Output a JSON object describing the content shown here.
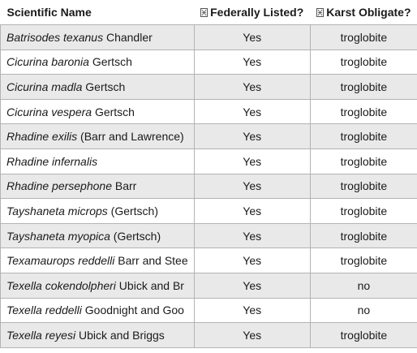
{
  "table": {
    "headers": [
      {
        "label": "Scientific Name",
        "icon": ""
      },
      {
        "label": "Federally Listed?",
        "icon": "sort-icon"
      },
      {
        "label": "Karst Obligate?",
        "icon": "sort-icon"
      }
    ],
    "rows": [
      {
        "genus_species": "Batrisodes texanus",
        "author": " Chandler",
        "listed": "Yes",
        "karst": "troglobite"
      },
      {
        "genus_species": "Cicurina baronia",
        "author": " Gertsch",
        "listed": "Yes",
        "karst": "troglobite"
      },
      {
        "genus_species": "Cicurina madla",
        "author": " Gertsch",
        "listed": "Yes",
        "karst": "troglobite"
      },
      {
        "genus_species": "Cicurina vespera",
        "author": " Gertsch",
        "listed": "Yes",
        "karst": "troglobite"
      },
      {
        "genus_species": "Rhadine exilis",
        "author": " (Barr and Lawrence)",
        "listed": "Yes",
        "karst": "troglobite"
      },
      {
        "genus_species": "Rhadine infernalis",
        "author": "",
        "listed": "Yes",
        "karst": "troglobite"
      },
      {
        "genus_species": "Rhadine persephone",
        "author": " Barr",
        "listed": "Yes",
        "karst": "troglobite"
      },
      {
        "genus_species": "Tayshaneta microps",
        "author": " (Gertsch)",
        "listed": "Yes",
        "karst": "troglobite"
      },
      {
        "genus_species": "Tayshaneta myopica",
        "author": " (Gertsch)",
        "listed": "Yes",
        "karst": "troglobite"
      },
      {
        "genus_species": "Texamaurops reddelli",
        "author": " Barr and Stee",
        "listed": "Yes",
        "karst": "troglobite"
      },
      {
        "genus_species": "Texella cokendolpheri",
        "author": " Ubick and Br",
        "listed": "Yes",
        "karst": "no"
      },
      {
        "genus_species": "Texella reddelli",
        "author": " Goodnight and Goo",
        "listed": "Yes",
        "karst": "no"
      },
      {
        "genus_species": "Texella reyesi",
        "author": " Ubick and Briggs",
        "listed": "Yes",
        "karst": "troglobite"
      }
    ]
  },
  "colors": {
    "stripe": "#e9e9e9",
    "border": "#b3b3b3",
    "text": "#1a1a1a"
  }
}
